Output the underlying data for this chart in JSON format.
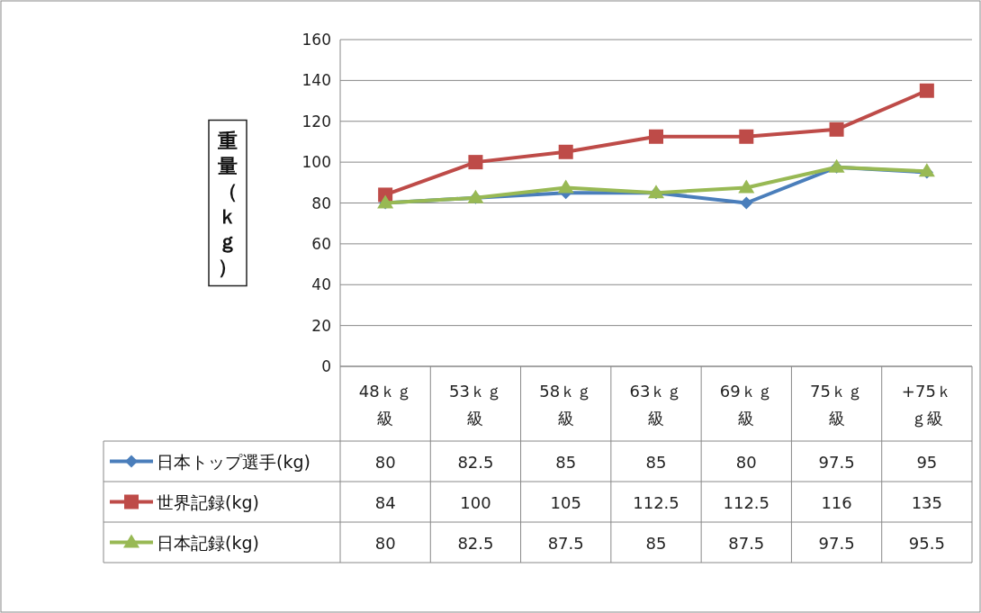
{
  "chart_data": {
    "type": "line",
    "ylabel": "重量（ｋｇ）",
    "categories": [
      "48ｋｇ級",
      "53ｋｇ級",
      "58ｋｇ級",
      "63ｋｇ級",
      "69ｋｇ級",
      "75ｋｇ級",
      "+75ｋｇ級"
    ],
    "series": [
      {
        "name": "日本トップ選手(kg)",
        "color": "#4a7ebb",
        "marker": "diamond",
        "values": [
          80,
          82.5,
          85,
          85,
          80,
          97.5,
          95
        ]
      },
      {
        "name": "世界記録(kg)",
        "color": "#be4b48",
        "marker": "square",
        "values": [
          84,
          100,
          105,
          112.5,
          112.5,
          116,
          135
        ]
      },
      {
        "name": "日本記録(kg)",
        "color": "#98b954",
        "marker": "triangle",
        "values": [
          80,
          82.5,
          87.5,
          85,
          87.5,
          97.5,
          95.5
        ]
      }
    ],
    "ylim": [
      0,
      160
    ],
    "yticks": [
      0,
      20,
      40,
      60,
      80,
      100,
      120,
      140,
      160
    ],
    "grid": "y",
    "legend": "bottom",
    "data_labels": true
  }
}
